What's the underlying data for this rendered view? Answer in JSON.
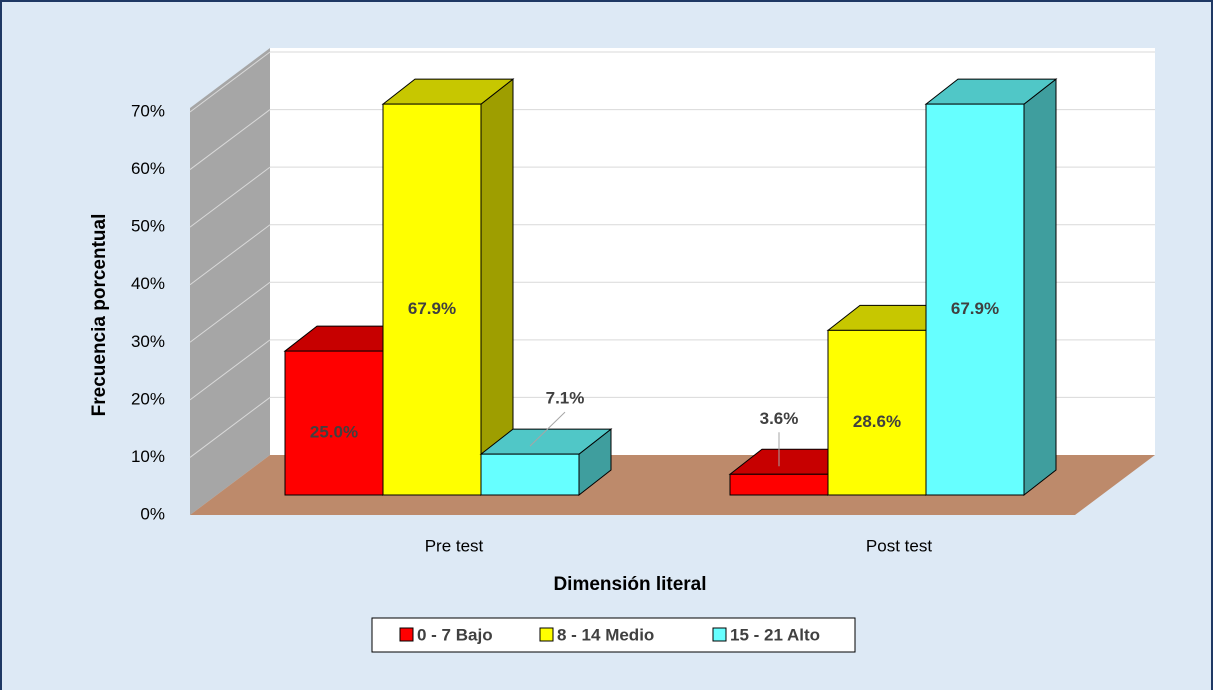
{
  "chart_data": {
    "type": "bar3d",
    "xlabel": "Dimensión literal",
    "ylabel": "Frecuencia porcentual",
    "categories": [
      "Pre test",
      "Post test"
    ],
    "series": [
      {
        "name": "0 - 7 Bajo",
        "color": "#ff0000",
        "values": [
          25.0,
          3.6
        ],
        "value_labels": [
          "25.0%",
          "3.6%"
        ]
      },
      {
        "name": "8 - 14 Medio",
        "color": "#ffff00",
        "values": [
          67.9,
          28.6
        ],
        "value_labels": [
          "67.9%",
          "28.6%"
        ]
      },
      {
        "name": "15 - 21 Alto",
        "color": "#66ffff",
        "values": [
          7.1,
          67.9
        ],
        "value_labels": [
          "7.1%",
          "67.9%"
        ]
      }
    ],
    "ylim": [
      0,
      70
    ],
    "yticks": [
      {
        "value": 0,
        "label": "0%"
      },
      {
        "value": 10,
        "label": "10%"
      },
      {
        "value": 20,
        "label": "20%"
      },
      {
        "value": 30,
        "label": "30%"
      },
      {
        "value": 40,
        "label": "40%"
      },
      {
        "value": 50,
        "label": "50%"
      },
      {
        "value": 60,
        "label": "60%"
      },
      {
        "value": 70,
        "label": "70%"
      }
    ],
    "grid": true,
    "legend": "bottom"
  }
}
